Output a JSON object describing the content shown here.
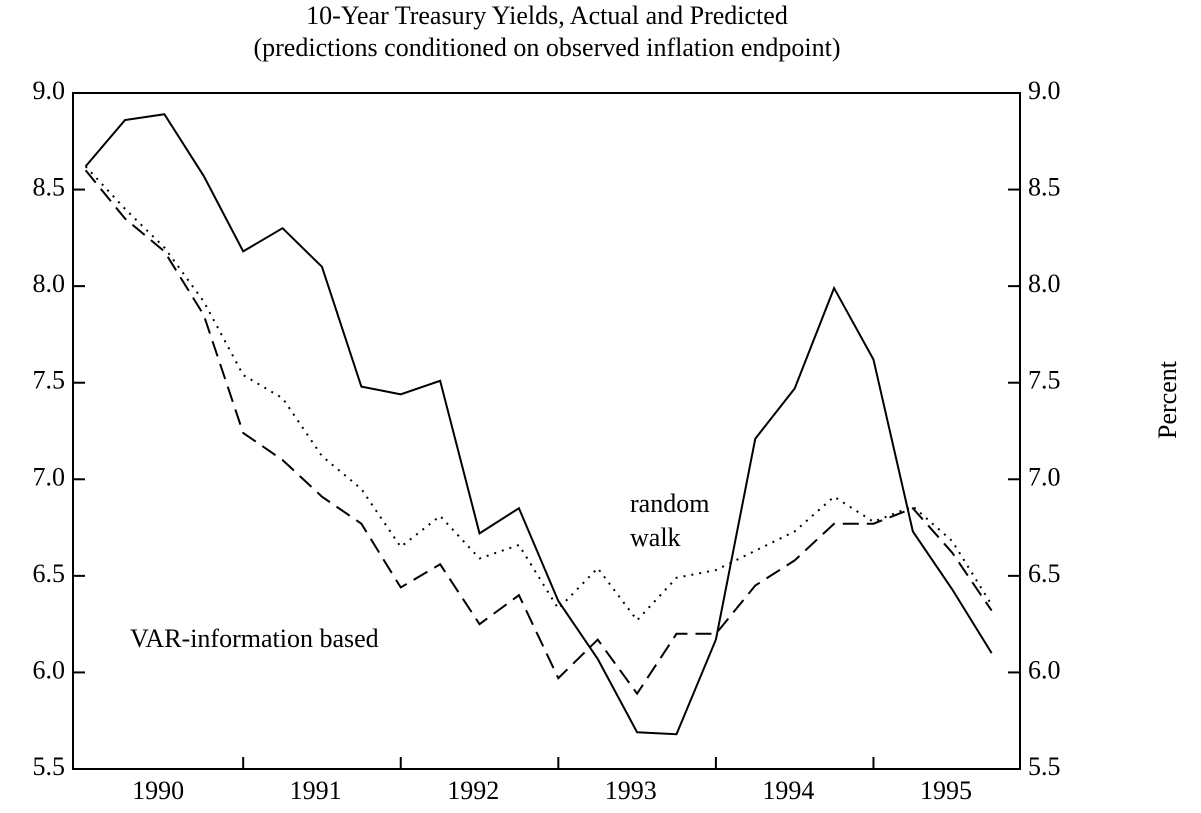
{
  "chart_data": {
    "type": "line",
    "title": "10-Year Treasury Yields, Actual and Predicted",
    "subtitle": "(predictions conditioned on observed inflation endpoint)",
    "y2_label": "Percent",
    "x": [
      1990,
      1990.25,
      1990.5,
      1990.75,
      1991,
      1991.25,
      1991.5,
      1991.75,
      1992,
      1992.25,
      1992.5,
      1992.75,
      1993,
      1993.25,
      1993.5,
      1993.75,
      1994,
      1994.25,
      1994.5,
      1994.75,
      1995,
      1995.25,
      1995.5,
      1995.75
    ],
    "series": [
      {
        "color": "#000000",
        "dash": "solid",
        "values": [
          8.62,
          8.86,
          8.89,
          8.57,
          8.18,
          8.3,
          8.1,
          7.48,
          7.44,
          7.51,
          6.72,
          6.85,
          6.37,
          6.07,
          5.69,
          5.68,
          6.17,
          7.21,
          7.47,
          7.99,
          7.62,
          6.73,
          6.43,
          6.1
        ]
      },
      {
        "name": "random walk",
        "color": "#000000",
        "dash": "dotted",
        "values": [
          8.62,
          8.4,
          8.2,
          7.92,
          7.54,
          7.42,
          7.12,
          6.95,
          6.65,
          6.81,
          6.59,
          6.66,
          6.33,
          6.54,
          6.27,
          6.49,
          6.53,
          6.63,
          6.73,
          6.91,
          6.78,
          6.86,
          6.68,
          6.35
        ]
      },
      {
        "name": "VAR-information based",
        "color": "#000000",
        "dash": "dashed",
        "values": [
          8.6,
          8.35,
          8.18,
          7.85,
          7.24,
          7.1,
          6.91,
          6.77,
          6.44,
          6.56,
          6.25,
          6.4,
          5.97,
          6.17,
          5.89,
          6.2,
          6.2,
          6.45,
          6.58,
          6.77,
          6.77,
          6.85,
          6.62,
          6.32
        ]
      }
    ],
    "annotations": [
      "random",
      "walk",
      "VAR-information based"
    ],
    "xlim": [
      1989.92,
      1995.93
    ],
    "xticks": [
      {
        "value": 1990.46,
        "label": "1990"
      },
      {
        "value": 1991.46,
        "label": "1991"
      },
      {
        "value": 1992.46,
        "label": "1992"
      },
      {
        "value": 1993.46,
        "label": "1993"
      },
      {
        "value": 1994.46,
        "label": "1994"
      },
      {
        "value": 1995.46,
        "label": "1995"
      }
    ],
    "xminor_ticks": [
      1991,
      1992,
      1993,
      1994,
      1995
    ],
    "ylim": [
      5.5,
      9
    ],
    "yticks": [
      {
        "value": 5.5,
        "label": "5.5"
      },
      {
        "value": 6,
        "label": "6.0"
      },
      {
        "value": 6.5,
        "label": "6.5"
      },
      {
        "value": 7,
        "label": "7.0"
      },
      {
        "value": 7.5,
        "label": "7.5"
      },
      {
        "value": 8,
        "label": "8.0"
      },
      {
        "value": 8.5,
        "label": "8.5"
      },
      {
        "value": 9,
        "label": "9.0"
      }
    ],
    "y2lim": [
      5.5,
      9
    ],
    "y2ticks": [
      {
        "value": 5.5,
        "label": "5.5"
      },
      {
        "value": 6,
        "label": "6.0"
      },
      {
        "value": 6.5,
        "label": "6.5"
      },
      {
        "value": 7,
        "label": "7.0"
      },
      {
        "value": 7.5,
        "label": "7.5"
      },
      {
        "value": 8,
        "label": "8.0"
      },
      {
        "value": 8.5,
        "label": "8.5"
      },
      {
        "value": 9,
        "label": "9.0"
      }
    ]
  }
}
